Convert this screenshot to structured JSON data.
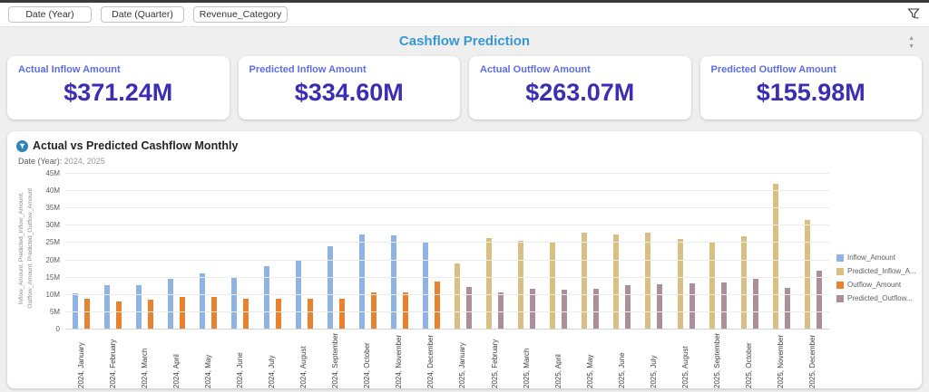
{
  "topbar": {
    "filters": [
      {
        "label": "Date (Year)"
      },
      {
        "label": "Date (Quarter)"
      },
      {
        "label": "Revenue_Category"
      }
    ]
  },
  "header": {
    "title": "Cashflow Prediction"
  },
  "kpi_cards": [
    {
      "label": "Actual Inflow Amount",
      "value": "$371.24M"
    },
    {
      "label": "Predicted Inflow Amount",
      "value": "$334.60M"
    },
    {
      "label": "Actual Outflow Amount",
      "value": "$263.07M"
    },
    {
      "label": "Predicted Outflow Amount",
      "value": "$155.98M"
    }
  ],
  "chart_panel": {
    "title": "Actual vs Predicted Cashflow Monthly",
    "filter_note_label": "Date (Year):",
    "filter_note_value": "2024, 2025"
  },
  "colors": {
    "page_title_blue": "#3898d4",
    "kpi_label_blue": "#5d6ee0",
    "kpi_value_indigo": "#3c2eb4"
  },
  "chart_data": {
    "type": "bar",
    "title": "Actual vs Predicted Cashflow Monthly",
    "xlabel": "",
    "ylabel": "Inflow_Amount, Predicted_Inflow_Amount, Outflow_Amount, Predicted_Outflow_Amount",
    "unit": "USD millions",
    "ylim": [
      0,
      45
    ],
    "ytick_labels": [
      "0",
      "5M",
      "10M",
      "15M",
      "20M",
      "25M",
      "30M",
      "35M",
      "40M",
      "45M"
    ],
    "grid": true,
    "legend_position": "right",
    "categories": [
      "2024, January",
      "2024, February",
      "2024, March",
      "2024, April",
      "2024, May",
      "2024, June",
      "2024, July",
      "2024, August",
      "2024, September",
      "2024, October",
      "2024, November",
      "2024, December",
      "2025, January",
      "2025, February",
      "2025, March",
      "2025, April",
      "2025, May",
      "2025, June",
      "2025, July",
      "2025, August",
      "2025, September",
      "2025, October",
      "2025, November",
      "2025, December"
    ],
    "series": [
      {
        "name": "Inflow_Amount",
        "legend_label": "Inflow_Amount",
        "color": "#8fb4e3",
        "values": [
          10.6,
          12.7,
          12.8,
          14.7,
          16.1,
          15.3,
          18.4,
          20.0,
          24.1,
          27.6,
          27.2,
          25.3,
          null,
          null,
          null,
          null,
          null,
          null,
          null,
          null,
          null,
          null,
          null,
          null
        ]
      },
      {
        "name": "Predicted_Inflow_Amount",
        "legend_label": "Predicted_Inflow_A...",
        "color": "#d8bf82",
        "values": [
          null,
          null,
          null,
          null,
          null,
          null,
          null,
          null,
          null,
          null,
          null,
          null,
          19.0,
          26.5,
          25.7,
          25.2,
          28.1,
          27.6,
          27.9,
          26.1,
          25.0,
          26.9,
          42.0,
          31.6
        ]
      },
      {
        "name": "Outflow_Amount",
        "legend_label": "Outflow_Amount",
        "color": "#e8822f",
        "values": [
          8.8,
          8.0,
          8.7,
          9.3,
          9.4,
          8.9,
          8.9,
          8.8,
          9.0,
          10.7,
          10.8,
          13.9,
          null,
          null,
          null,
          null,
          null,
          null,
          null,
          null,
          null,
          null,
          null,
          null
        ]
      },
      {
        "name": "Predicted_Outflow_Amount",
        "legend_label": "Predicted_Outflow...",
        "color": "#ab8f99",
        "values": [
          null,
          null,
          null,
          null,
          null,
          null,
          null,
          null,
          null,
          null,
          null,
          null,
          12.4,
          10.7,
          11.8,
          11.4,
          11.8,
          12.7,
          13.0,
          13.3,
          13.6,
          14.6,
          12.1,
          17.1
        ]
      }
    ]
  }
}
